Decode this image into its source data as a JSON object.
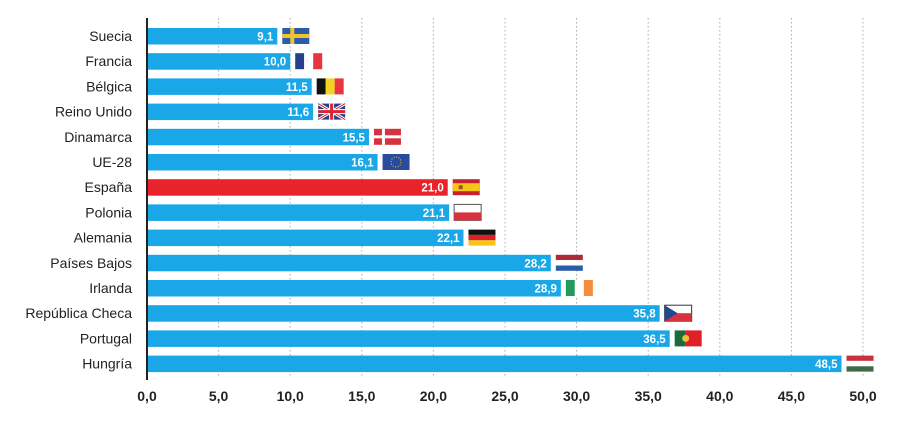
{
  "chart_data": {
    "type": "bar",
    "orientation": "horizontal",
    "title": "",
    "xlabel": "",
    "ylabel": "",
    "xlim": [
      0,
      50
    ],
    "grid": "vertical dotted",
    "x_ticks": [
      "0,0",
      "5,0",
      "10,0",
      "15,0",
      "20,0",
      "25,0",
      "30,0",
      "35,0",
      "40,0",
      "45,0",
      "50,0"
    ],
    "x_tick_values": [
      0,
      5,
      10,
      15,
      20,
      25,
      30,
      35,
      40,
      45,
      50
    ],
    "categories": [
      "Suecia",
      "Francia",
      "Bélgica",
      "Reino Unido",
      "Dinamarca",
      "UE-28",
      "España",
      "Polonia",
      "Alemania",
      "Países Bajos",
      "Irlanda",
      "República Checa",
      "Portugal",
      "Hungría"
    ],
    "values": [
      9.1,
      10.0,
      11.5,
      11.6,
      15.5,
      16.1,
      21.0,
      21.1,
      22.1,
      28.2,
      28.9,
      35.8,
      36.5,
      48.5
    ],
    "value_labels": [
      "9,1",
      "10,0",
      "11,5",
      "11,6",
      "15,5",
      "16,1",
      "21,0",
      "21,1",
      "22,1",
      "28,2",
      "28,9",
      "35,8",
      "36,5",
      "48,5"
    ],
    "flags": [
      "sweden-flag",
      "france-flag",
      "belgium-flag",
      "uk-flag",
      "denmark-flag",
      "eu-flag",
      "spain-flag",
      "poland-flag",
      "germany-flag",
      "netherlands-flag",
      "ireland-flag",
      "czech-flag",
      "portugal-flag",
      "hungary-flag"
    ],
    "highlight": "España",
    "colors": {
      "bar": "#1aa7e8",
      "highlight": "#e8232a",
      "axis": "#222222",
      "grid": "#aaaaaa"
    }
  }
}
